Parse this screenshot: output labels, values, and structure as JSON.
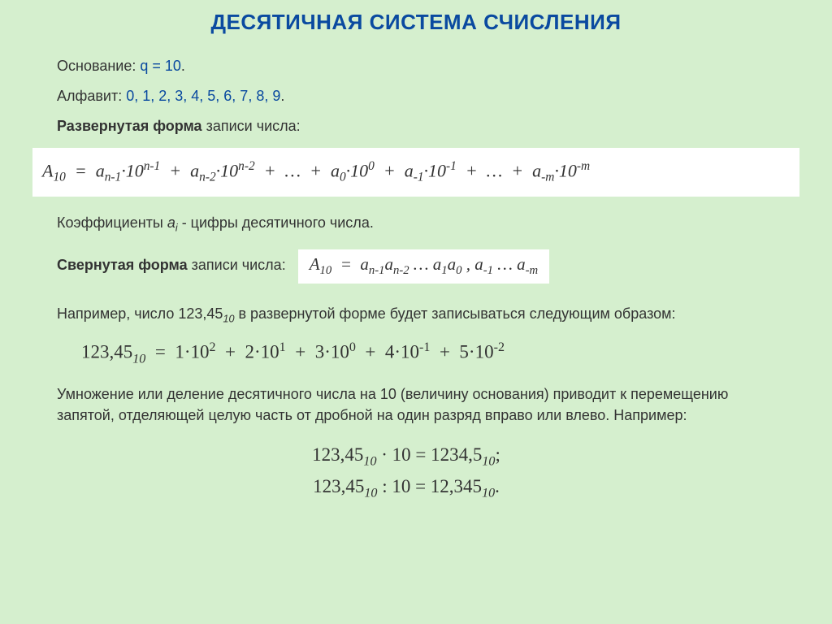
{
  "title": "ДЕСЯТИЧНАЯ СИСТЕМА СЧИСЛЕНИЯ",
  "base_label": "Основание:",
  "base_value": "q = 10",
  "alphabet_label": "Алфавит:",
  "alphabet_value": "0, 1, 2, 3, 4, 5, 6, 7, 8, 9",
  "expanded_label": "Развернутая форма",
  "expanded_after": " записи числа:",
  "coef_label_prefix": "Коэффициенты  ",
  "coef_symbol_a": "a",
  "coef_symbol_i": "i",
  "coef_label_suffix": " - цифры десятичного числа.",
  "compact_label": "Свернутая форма",
  "compact_after": " записи числа:",
  "example_intro_prefix": "Например, число 123,45",
  "example_intro_sub": "10",
  "example_intro_suffix": " в развернутой форме будет записываться следующим образом:",
  "mult_text": "Умножение или деление десятичного числа на 10 (величину основания) приводит к перемещению запятой, отделяющей целую часть от дробной на один разряд вправо или влево. Например:",
  "colors": {
    "background": "#d5efce",
    "primary_blue": "#0a4aa0",
    "text": "#333333",
    "formula_bg": "#ffffff"
  },
  "formulas": {
    "expanded_general": {
      "lhs": "A",
      "lhs_sub": "10",
      "terms": [
        {
          "coef_sub": "n-1",
          "base": "10",
          "exp": "n-1"
        },
        {
          "coef_sub": "n-2",
          "base": "10",
          "exp": "n-2"
        },
        {
          "ellipsis": true
        },
        {
          "coef_sub": "0",
          "base": "10",
          "exp": "0"
        },
        {
          "coef_sub": "-1",
          "base": "10",
          "exp": "-1"
        },
        {
          "ellipsis": true
        },
        {
          "coef_sub": "-m",
          "base": "10",
          "exp": "-m"
        }
      ]
    },
    "compact_general": "A₁₀  =  aₙ₋₁aₙ₋₂ … a₁a₀ , a₋₁ … a₋ₘ",
    "example_expanded": {
      "lhs": "123,45",
      "lhs_sub": "10",
      "terms": [
        {
          "d": "1",
          "exp": "2"
        },
        {
          "d": "2",
          "exp": "1"
        },
        {
          "d": "3",
          "exp": "0"
        },
        {
          "d": "4",
          "exp": "-1"
        },
        {
          "d": "5",
          "exp": "-2"
        }
      ]
    },
    "mult_examples": [
      {
        "lhs": "123,45",
        "lhs_sub": "10",
        "op": "·",
        "operand": "10",
        "rhs": "1234,5",
        "rhs_sub": "10",
        "tail": ";"
      },
      {
        "lhs": "123,45",
        "lhs_sub": "10",
        "op": ":",
        "operand": "10",
        "rhs": "12,345",
        "rhs_sub": "10",
        "tail": "."
      }
    ]
  }
}
